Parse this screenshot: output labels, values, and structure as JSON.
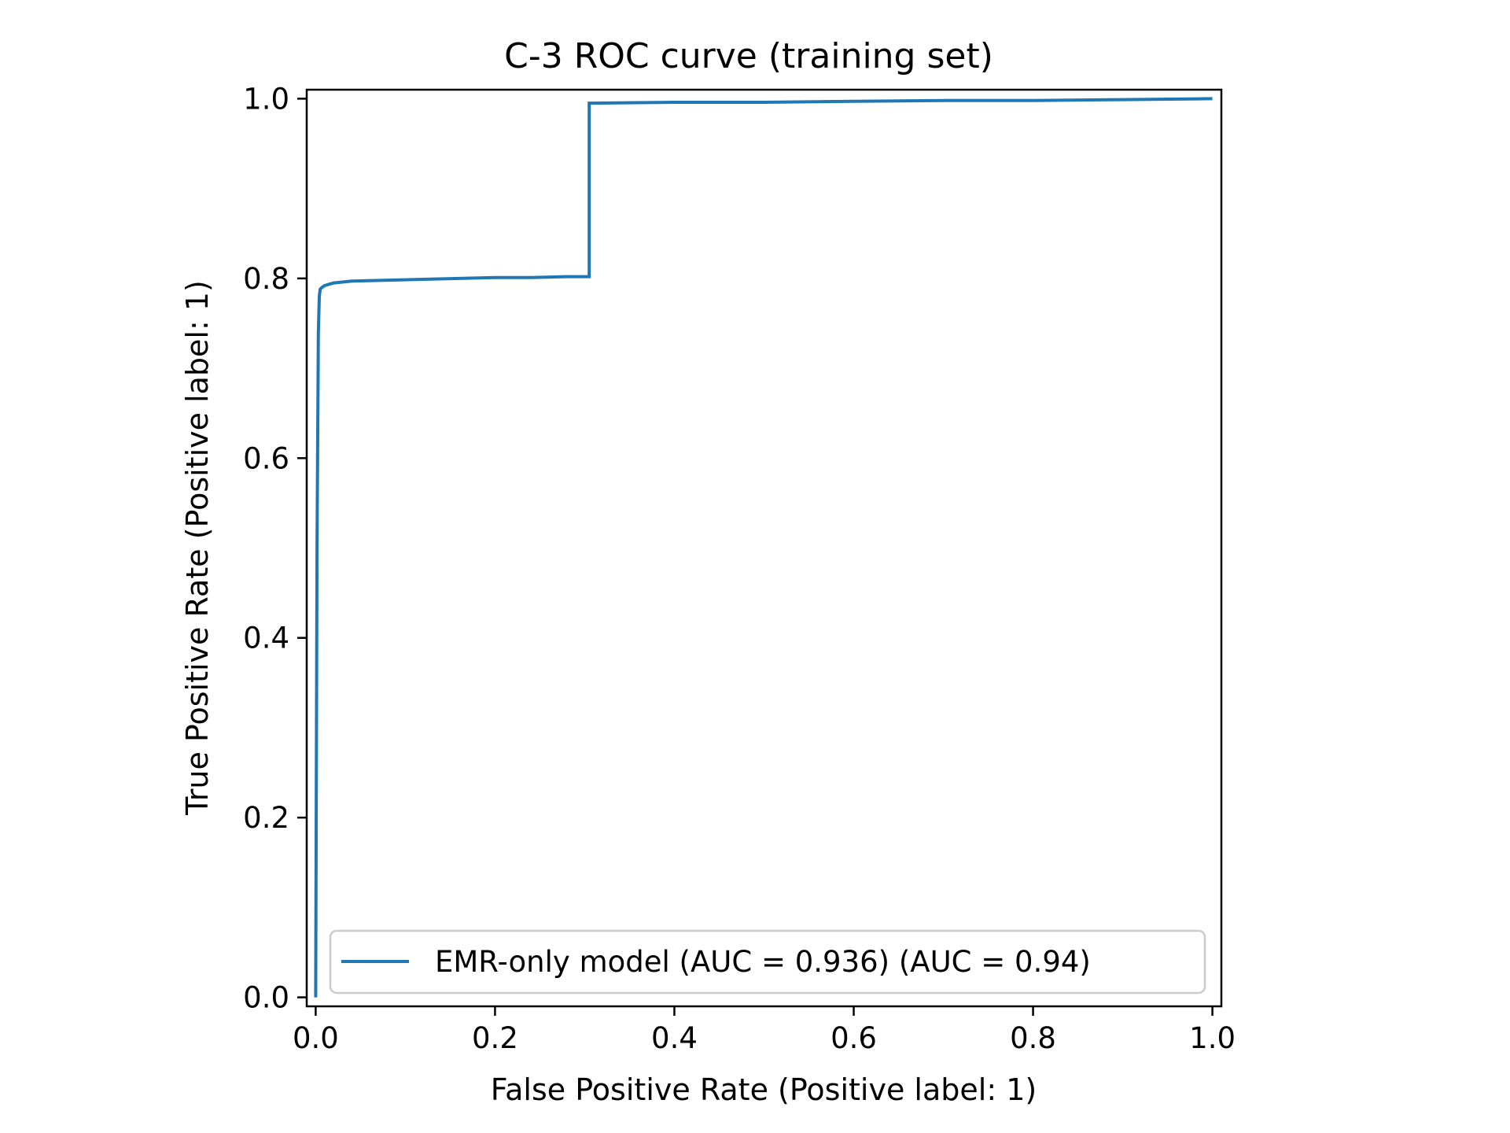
{
  "chart_data": {
    "type": "line",
    "title": "C-3  ROC curve  (training set)",
    "xlabel": "False Positive Rate (Positive label: 1)",
    "ylabel": "True Positive Rate (Positive label: 1)",
    "xlim": [
      -0.01,
      1.01
    ],
    "ylim": [
      -0.01,
      1.01
    ],
    "xticks": [
      0.0,
      0.2,
      0.4,
      0.6,
      0.8,
      1.0
    ],
    "yticks": [
      0.0,
      0.2,
      0.4,
      0.6,
      0.8,
      1.0
    ],
    "xtick_labels": [
      "0.0",
      "0.2",
      "0.4",
      "0.6",
      "0.8",
      "1.0"
    ],
    "ytick_labels": [
      "0.0",
      "0.2",
      "0.4",
      "0.6",
      "0.8",
      "1.0"
    ],
    "grid": false,
    "legend_position": "lower-right",
    "series": [
      {
        "name": "EMR-only model  (AUC = 0.936) (AUC = 0.94)",
        "color": "#1f77b4",
        "x": [
          0.0,
          0.0015,
          0.003,
          0.004,
          0.005,
          0.007,
          0.01,
          0.02,
          0.04,
          0.08,
          0.12,
          0.16,
          0.2,
          0.24,
          0.28,
          0.305,
          0.305,
          0.31,
          0.4,
          0.5,
          0.6,
          0.7,
          0.8,
          0.9,
          1.0
        ],
        "y": [
          0.0,
          0.5,
          0.74,
          0.78,
          0.788,
          0.79,
          0.792,
          0.795,
          0.797,
          0.798,
          0.799,
          0.8,
          0.801,
          0.801,
          0.802,
          0.802,
          0.995,
          0.995,
          0.996,
          0.996,
          0.997,
          0.998,
          0.998,
          0.999,
          1.0
        ]
      }
    ]
  }
}
